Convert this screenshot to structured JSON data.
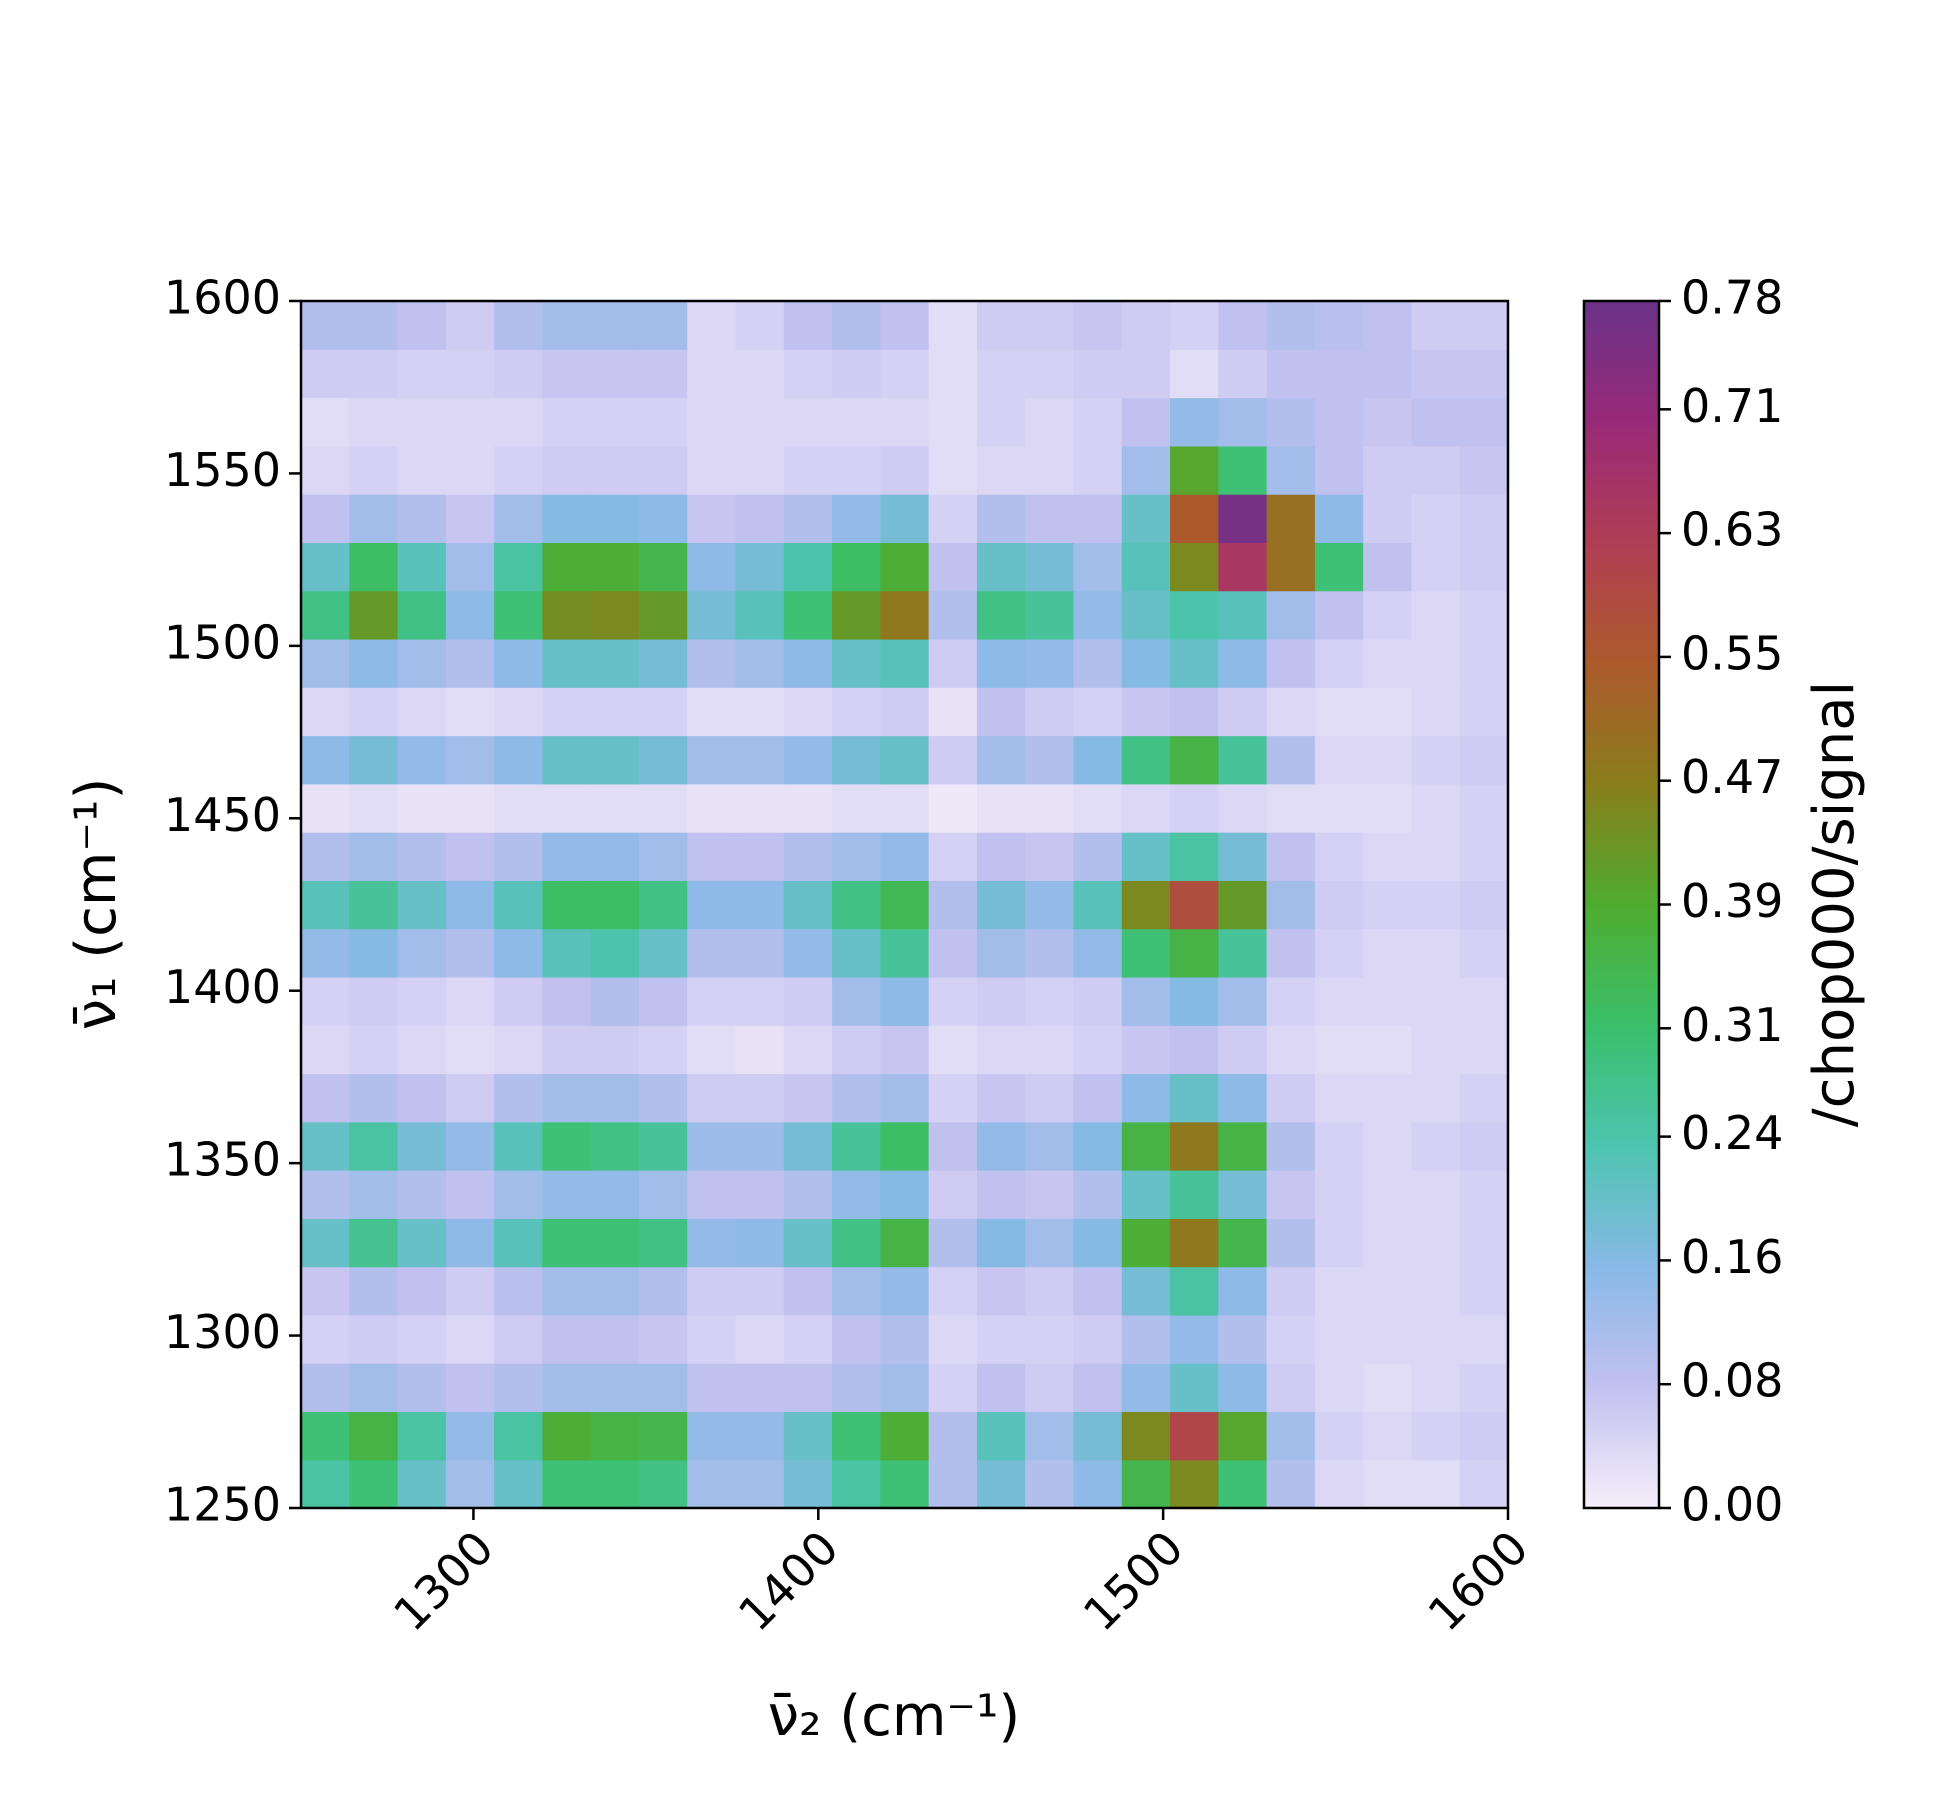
{
  "chart_data": {
    "type": "heatmap",
    "xlabel": "ν̄₂ (cm⁻¹)",
    "ylabel": "ν̄₁ (cm⁻¹)",
    "colorbar_label": "/chop000/signal",
    "x": [
      1257,
      1271,
      1285,
      1299,
      1313,
      1327,
      1341,
      1355,
      1369,
      1383,
      1397,
      1411,
      1425,
      1439,
      1453,
      1467,
      1481,
      1495,
      1509,
      1523,
      1537,
      1551,
      1565,
      1579,
      1593
    ],
    "y": [
      1257,
      1271,
      1285,
      1299,
      1313,
      1327,
      1341,
      1355,
      1369,
      1383,
      1397,
      1411,
      1425,
      1439,
      1453,
      1467,
      1481,
      1495,
      1509,
      1523,
      1537,
      1551,
      1565,
      1579,
      1593
    ],
    "z": [
      [
        0.25,
        0.3,
        0.2,
        0.12,
        0.2,
        0.3,
        0.3,
        0.28,
        0.12,
        0.12,
        0.18,
        0.25,
        0.3,
        0.1,
        0.18,
        0.1,
        0.15,
        0.35,
        0.45,
        0.3,
        0.1,
        0.04,
        0.03,
        0.03,
        0.05
      ],
      [
        0.3,
        0.36,
        0.25,
        0.14,
        0.25,
        0.38,
        0.36,
        0.35,
        0.14,
        0.14,
        0.2,
        0.3,
        0.38,
        0.1,
        0.22,
        0.12,
        0.18,
        0.45,
        0.6,
        0.4,
        0.12,
        0.05,
        0.04,
        0.05,
        0.06
      ],
      [
        0.1,
        0.12,
        0.1,
        0.08,
        0.1,
        0.12,
        0.12,
        0.12,
        0.08,
        0.08,
        0.08,
        0.1,
        0.12,
        0.05,
        0.08,
        0.06,
        0.08,
        0.14,
        0.2,
        0.15,
        0.06,
        0.04,
        0.03,
        0.04,
        0.05
      ],
      [
        0.05,
        0.06,
        0.05,
        0.04,
        0.06,
        0.08,
        0.08,
        0.07,
        0.05,
        0.04,
        0.05,
        0.08,
        0.1,
        0.04,
        0.05,
        0.05,
        0.06,
        0.1,
        0.14,
        0.1,
        0.05,
        0.04,
        0.04,
        0.04,
        0.04
      ],
      [
        0.07,
        0.1,
        0.08,
        0.06,
        0.09,
        0.12,
        0.12,
        0.1,
        0.06,
        0.06,
        0.08,
        0.12,
        0.14,
        0.05,
        0.07,
        0.06,
        0.08,
        0.18,
        0.25,
        0.15,
        0.06,
        0.04,
        0.04,
        0.04,
        0.05
      ],
      [
        0.2,
        0.27,
        0.2,
        0.15,
        0.22,
        0.3,
        0.3,
        0.28,
        0.14,
        0.15,
        0.2,
        0.28,
        0.36,
        0.1,
        0.16,
        0.12,
        0.16,
        0.38,
        0.48,
        0.35,
        0.1,
        0.05,
        0.04,
        0.04,
        0.05
      ],
      [
        0.1,
        0.12,
        0.1,
        0.08,
        0.12,
        0.14,
        0.14,
        0.12,
        0.08,
        0.08,
        0.1,
        0.14,
        0.16,
        0.06,
        0.08,
        0.07,
        0.1,
        0.2,
        0.26,
        0.18,
        0.07,
        0.05,
        0.04,
        0.04,
        0.05
      ],
      [
        0.2,
        0.25,
        0.18,
        0.14,
        0.22,
        0.3,
        0.28,
        0.26,
        0.13,
        0.13,
        0.18,
        0.26,
        0.32,
        0.08,
        0.14,
        0.12,
        0.16,
        0.36,
        0.48,
        0.36,
        0.1,
        0.05,
        0.04,
        0.05,
        0.06
      ],
      [
        0.08,
        0.1,
        0.08,
        0.06,
        0.1,
        0.12,
        0.12,
        0.1,
        0.06,
        0.06,
        0.07,
        0.1,
        0.12,
        0.05,
        0.07,
        0.06,
        0.08,
        0.15,
        0.2,
        0.15,
        0.06,
        0.04,
        0.04,
        0.04,
        0.05
      ],
      [
        0.04,
        0.05,
        0.04,
        0.03,
        0.04,
        0.06,
        0.06,
        0.05,
        0.03,
        0.02,
        0.04,
        0.06,
        0.07,
        0.03,
        0.04,
        0.04,
        0.05,
        0.07,
        0.08,
        0.06,
        0.04,
        0.03,
        0.03,
        0.04,
        0.04
      ],
      [
        0.05,
        0.06,
        0.05,
        0.04,
        0.06,
        0.08,
        0.1,
        0.08,
        0.05,
        0.05,
        0.06,
        0.12,
        0.15,
        0.05,
        0.06,
        0.05,
        0.06,
        0.12,
        0.16,
        0.12,
        0.05,
        0.04,
        0.04,
        0.04,
        0.04
      ],
      [
        0.14,
        0.16,
        0.12,
        0.1,
        0.15,
        0.22,
        0.24,
        0.2,
        0.1,
        0.1,
        0.14,
        0.2,
        0.26,
        0.08,
        0.12,
        0.1,
        0.14,
        0.3,
        0.36,
        0.26,
        0.08,
        0.05,
        0.04,
        0.04,
        0.05
      ],
      [
        0.22,
        0.26,
        0.2,
        0.15,
        0.22,
        0.32,
        0.32,
        0.28,
        0.15,
        0.15,
        0.2,
        0.28,
        0.34,
        0.1,
        0.18,
        0.14,
        0.22,
        0.45,
        0.58,
        0.42,
        0.12,
        0.06,
        0.05,
        0.05,
        0.06
      ],
      [
        0.1,
        0.12,
        0.1,
        0.08,
        0.1,
        0.14,
        0.14,
        0.12,
        0.08,
        0.08,
        0.1,
        0.12,
        0.14,
        0.05,
        0.08,
        0.07,
        0.1,
        0.2,
        0.25,
        0.18,
        0.08,
        0.05,
        0.04,
        0.04,
        0.05
      ],
      [
        0.02,
        0.03,
        0.02,
        0.02,
        0.03,
        0.03,
        0.03,
        0.03,
        0.02,
        0.02,
        0.02,
        0.03,
        0.03,
        0.01,
        0.02,
        0.02,
        0.03,
        0.04,
        0.05,
        0.04,
        0.03,
        0.03,
        0.03,
        0.04,
        0.05
      ],
      [
        0.15,
        0.18,
        0.14,
        0.12,
        0.15,
        0.2,
        0.2,
        0.18,
        0.12,
        0.12,
        0.14,
        0.18,
        0.2,
        0.06,
        0.12,
        0.1,
        0.16,
        0.28,
        0.36,
        0.26,
        0.1,
        0.04,
        0.04,
        0.05,
        0.06
      ],
      [
        0.04,
        0.05,
        0.04,
        0.03,
        0.04,
        0.05,
        0.05,
        0.05,
        0.03,
        0.03,
        0.04,
        0.05,
        0.06,
        0.02,
        0.08,
        0.06,
        0.05,
        0.07,
        0.08,
        0.06,
        0.04,
        0.03,
        0.03,
        0.04,
        0.05
      ],
      [
        0.12,
        0.15,
        0.12,
        0.1,
        0.15,
        0.2,
        0.2,
        0.18,
        0.1,
        0.12,
        0.15,
        0.2,
        0.22,
        0.06,
        0.15,
        0.14,
        0.1,
        0.16,
        0.2,
        0.15,
        0.08,
        0.05,
        0.04,
        0.04,
        0.05
      ],
      [
        0.28,
        0.42,
        0.28,
        0.15,
        0.3,
        0.44,
        0.45,
        0.42,
        0.18,
        0.22,
        0.3,
        0.42,
        0.48,
        0.1,
        0.28,
        0.26,
        0.14,
        0.2,
        0.24,
        0.22,
        0.12,
        0.08,
        0.05,
        0.04,
        0.05
      ],
      [
        0.2,
        0.32,
        0.22,
        0.12,
        0.25,
        0.38,
        0.38,
        0.35,
        0.15,
        0.18,
        0.24,
        0.32,
        0.38,
        0.08,
        0.2,
        0.18,
        0.12,
        0.22,
        0.45,
        0.65,
        0.5,
        0.3,
        0.08,
        0.05,
        0.06
      ],
      [
        0.08,
        0.12,
        0.1,
        0.07,
        0.12,
        0.16,
        0.16,
        0.15,
        0.07,
        0.08,
        0.1,
        0.14,
        0.18,
        0.05,
        0.1,
        0.08,
        0.08,
        0.2,
        0.55,
        0.76,
        0.5,
        0.15,
        0.06,
        0.05,
        0.06
      ],
      [
        0.04,
        0.05,
        0.04,
        0.04,
        0.05,
        0.06,
        0.06,
        0.06,
        0.04,
        0.04,
        0.05,
        0.05,
        0.06,
        0.03,
        0.04,
        0.04,
        0.05,
        0.12,
        0.4,
        0.3,
        0.12,
        0.08,
        0.06,
        0.06,
        0.07
      ],
      [
        0.03,
        0.04,
        0.04,
        0.04,
        0.04,
        0.05,
        0.05,
        0.05,
        0.04,
        0.04,
        0.04,
        0.04,
        0.04,
        0.03,
        0.05,
        0.04,
        0.05,
        0.08,
        0.14,
        0.12,
        0.1,
        0.08,
        0.07,
        0.08,
        0.08
      ],
      [
        0.06,
        0.06,
        0.05,
        0.05,
        0.06,
        0.07,
        0.07,
        0.07,
        0.04,
        0.04,
        0.05,
        0.06,
        0.05,
        0.03,
        0.05,
        0.05,
        0.06,
        0.06,
        0.03,
        0.06,
        0.08,
        0.08,
        0.08,
        0.07,
        0.07
      ],
      [
        0.1,
        0.1,
        0.08,
        0.06,
        0.1,
        0.12,
        0.12,
        0.12,
        0.04,
        0.05,
        0.08,
        0.1,
        0.08,
        0.03,
        0.06,
        0.06,
        0.07,
        0.06,
        0.05,
        0.08,
        0.1,
        0.09,
        0.08,
        0.06,
        0.06
      ]
    ],
    "xlim": [
      1250,
      1600
    ],
    "xticks": [
      1300,
      1400,
      1500,
      1600
    ],
    "ylim": [
      1250,
      1600
    ],
    "yticks": [
      1250,
      1300,
      1350,
      1400,
      1450,
      1500,
      1550,
      1600
    ],
    "clim": [
      0,
      0.78
    ],
    "cticks": [
      {
        "value": 0,
        "label": "0.00"
      },
      0.08,
      0.16,
      0.24,
      0.31,
      0.39,
      0.47,
      0.55,
      0.63,
      0.71,
      0.78
    ],
    "colormap": [
      "#f5eefa",
      "#c3c1f0",
      "#88b9e6",
      "#4dc4b0",
      "#3bbf6a",
      "#4fac2f",
      "#8a7d1c",
      "#ad5a2c",
      "#b03e55",
      "#982a78",
      "#6a3388"
    ]
  }
}
